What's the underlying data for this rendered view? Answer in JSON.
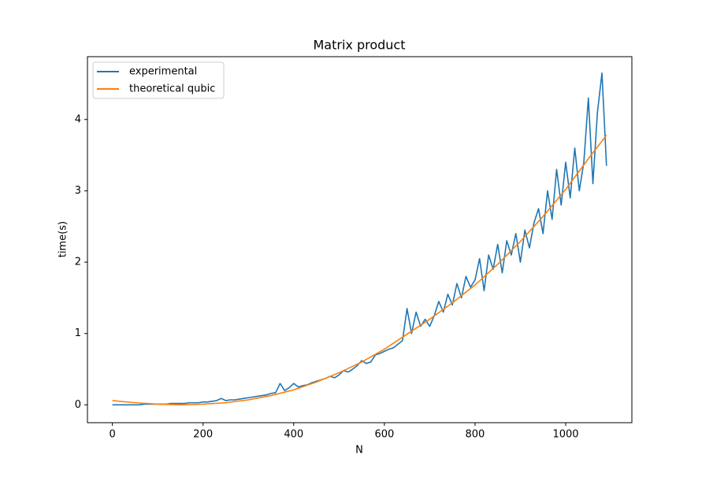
{
  "chart_data": {
    "type": "line",
    "title": "Matrix product",
    "x_label": "N",
    "y_label": "time(s)",
    "xlim": [
      -55,
      1146
    ],
    "ylim": [
      -0.25,
      4.88
    ],
    "xticks": [
      0,
      200,
      400,
      600,
      800,
      1000
    ],
    "yticks": [
      0,
      1,
      2,
      3,
      4
    ],
    "legend": "upper left",
    "series": [
      {
        "name": "experimental",
        "color": "#1f77b4",
        "x": [
          0,
          10,
          20,
          30,
          40,
          50,
          60,
          70,
          80,
          90,
          100,
          110,
          120,
          130,
          140,
          150,
          160,
          170,
          180,
          190,
          200,
          210,
          220,
          230,
          240,
          250,
          260,
          270,
          280,
          290,
          300,
          310,
          320,
          330,
          340,
          350,
          360,
          370,
          380,
          390,
          400,
          410,
          420,
          430,
          440,
          450,
          460,
          470,
          480,
          490,
          500,
          510,
          520,
          530,
          540,
          550,
          560,
          570,
          580,
          590,
          600,
          610,
          620,
          630,
          640,
          650,
          660,
          670,
          680,
          690,
          700,
          710,
          720,
          730,
          740,
          750,
          760,
          770,
          780,
          790,
          800,
          810,
          820,
          830,
          840,
          850,
          860,
          870,
          880,
          890,
          900,
          910,
          920,
          930,
          940,
          950,
          960,
          970,
          980,
          990,
          1000,
          1010,
          1020,
          1030,
          1040,
          1050,
          1060,
          1070,
          1080,
          1090
        ],
        "values": [
          0.0,
          0.0,
          0.0,
          0.0,
          0.0,
          0.0,
          0.0,
          0.01,
          0.01,
          0.01,
          0.01,
          0.01,
          0.01,
          0.02,
          0.02,
          0.02,
          0.02,
          0.03,
          0.03,
          0.03,
          0.04,
          0.04,
          0.05,
          0.06,
          0.09,
          0.06,
          0.07,
          0.07,
          0.08,
          0.09,
          0.1,
          0.11,
          0.12,
          0.13,
          0.14,
          0.16,
          0.17,
          0.3,
          0.2,
          0.24,
          0.3,
          0.25,
          0.27,
          0.28,
          0.31,
          0.33,
          0.35,
          0.37,
          0.4,
          0.38,
          0.42,
          0.48,
          0.46,
          0.5,
          0.55,
          0.62,
          0.58,
          0.6,
          0.7,
          0.72,
          0.75,
          0.78,
          0.8,
          0.85,
          0.9,
          1.35,
          1.0,
          1.3,
          1.1,
          1.2,
          1.1,
          1.25,
          1.45,
          1.3,
          1.55,
          1.4,
          1.7,
          1.5,
          1.8,
          1.65,
          1.75,
          2.05,
          1.6,
          2.1,
          1.9,
          2.25,
          1.85,
          2.3,
          2.1,
          2.4,
          2.0,
          2.45,
          2.2,
          2.55,
          2.75,
          2.4,
          3.0,
          2.6,
          3.3,
          2.8,
          3.4,
          2.9,
          3.6,
          3.0,
          3.4,
          4.3,
          3.1,
          4.1,
          4.65,
          3.35
        ]
      },
      {
        "name": "theoretical qubic",
        "color": "#ff7f0e",
        "x": [
          0,
          50,
          100,
          150,
          200,
          250,
          300,
          350,
          400,
          450,
          500,
          550,
          600,
          650,
          700,
          750,
          800,
          850,
          900,
          950,
          1000,
          1050,
          1090
        ],
        "values": [
          0.06,
          0.03,
          0.01,
          0.0,
          0.01,
          0.03,
          0.07,
          0.13,
          0.21,
          0.32,
          0.45,
          0.6,
          0.78,
          0.99,
          1.2,
          1.43,
          1.68,
          1.97,
          2.29,
          2.64,
          3.02,
          3.45,
          3.78
        ]
      }
    ]
  }
}
